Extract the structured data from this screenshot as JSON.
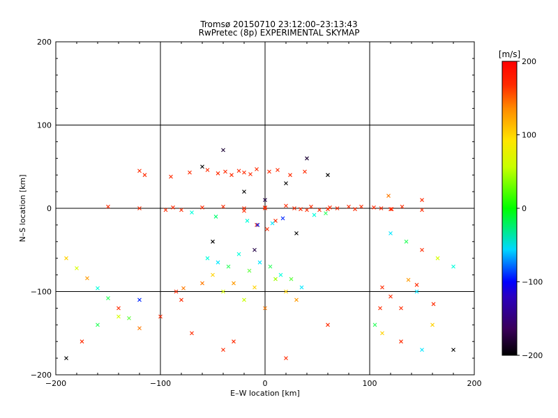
{
  "chart_data": {
    "type": "scatter",
    "title": "Tromsø 20150710 23:12:00–23:13:43",
    "subtitle": "RwPretec (8p) EXPERIMENTAL SKYMAP",
    "xlabel": "E–W location [km]",
    "ylabel": "N–S location [km]",
    "xlim": [
      -200,
      200
    ],
    "ylim": [
      -200,
      200
    ],
    "xticks": [
      -200,
      -100,
      0,
      100,
      200
    ],
    "yticks": [
      -200,
      -100,
      0,
      100,
      200
    ],
    "grid": true,
    "colorbar": {
      "label": "[m/s]",
      "range": [
        -200,
        200
      ],
      "ticks": [
        -200,
        -100,
        0,
        100,
        200
      ],
      "colormap": "black-purple-blue-cyan-green-yellow-orange-red"
    },
    "marker_types": [
      "x",
      "dot"
    ],
    "series": [
      {
        "x": [
          -120,
          -115,
          -90,
          -72,
          -55,
          -45,
          -38,
          -32,
          -25,
          -20,
          -14,
          -8,
          4,
          12,
          24,
          38,
          -8,
          2,
          10,
          -60,
          -50,
          -40,
          -30,
          -20,
          -10,
          0,
          10,
          20,
          30,
          -55,
          -45,
          -35,
          -25,
          -15,
          -5,
          5,
          15,
          25,
          35,
          -100,
          -70,
          -40,
          110,
          -80,
          60,
          -30,
          20,
          -60,
          -40,
          -20,
          0,
          20,
          40,
          60,
          -50,
          -10,
          30,
          -20,
          -40,
          40,
          -60,
          60,
          -20,
          20,
          0,
          -80,
          80,
          0,
          -120,
          120,
          -150,
          150,
          -95,
          -88,
          28,
          34,
          44,
          52,
          62,
          69,
          86,
          92,
          104,
          111,
          121,
          131,
          -70,
          -47,
          -17,
          -7,
          7,
          17,
          47,
          58,
          -85,
          -78,
          112,
          120,
          137,
          145,
          161,
          -190,
          -175,
          -160,
          -140,
          -120,
          130,
          145,
          160,
          180,
          -190,
          -180,
          -170,
          -160,
          -150,
          -140,
          -130,
          -120,
          120,
          135,
          150,
          165,
          180,
          105,
          112,
          130,
          150,
          118,
          150
        ],
        "y": [
          45,
          40,
          38,
          43,
          46,
          42,
          44,
          40,
          45,
          43,
          41,
          47,
          44,
          46,
          40,
          44,
          -20,
          -25,
          -15,
          -90,
          -80,
          -100,
          -90,
          -110,
          -95,
          -120,
          -85,
          -100,
          -110,
          -60,
          -65,
          -70,
          -55,
          -75,
          -65,
          -70,
          -80,
          -85,
          -95,
          -130,
          -150,
          -170,
          -120,
          -110,
          -140,
          -160,
          -180,
          50,
          70,
          20,
          10,
          30,
          60,
          40,
          -40,
          -50,
          -30,
          0,
          2,
          -2,
          1,
          -1,
          -3,
          3,
          0,
          -2,
          2,
          1,
          0,
          -1,
          2,
          -2,
          -2,
          1,
          0,
          -1,
          2,
          -2,
          1,
          0,
          -1,
          2,
          1,
          0,
          -1,
          2,
          -5,
          -10,
          -15,
          -20,
          -18,
          -12,
          -8,
          -6,
          -100,
          -96,
          -95,
          -106,
          -86,
          -92,
          -115,
          -180,
          -160,
          -140,
          -130,
          -110,
          -120,
          -100,
          -140,
          -170,
          -60,
          -72,
          -84,
          -96,
          -108,
          -120,
          -132,
          -144,
          -30,
          -40,
          -50,
          -60,
          -70,
          -140,
          -150,
          -160,
          -170,
          15,
          10
        ],
        "colors": [
          "#ff2a00",
          "#ff2a00",
          "#ff2a00",
          "#ff2a00",
          "#ff2a00",
          "#ff2a00",
          "#ff2a00",
          "#ff2a00",
          "#ff2a00",
          "#ff2a00",
          "#ff2a00",
          "#ff2a00",
          "#ff2a00",
          "#ff2a00",
          "#ff2a00",
          "#ff2a00",
          "#ff2a00",
          "#ff2a00",
          "#ff2a00",
          "#ff7a00",
          "#ffd200",
          "#d8ff00",
          "#ff9a00",
          "#c8ff00",
          "#ffd200",
          "#ff7a00",
          "#a0ff00",
          "#ffd200",
          "#ff9a00",
          "#00ffdc",
          "#00e6ff",
          "#30ff60",
          "#00ffdc",
          "#60ff40",
          "#00e6ff",
          "#30ff60",
          "#00ffdc",
          "#60ff40",
          "#00e6ff",
          "#ff2a00",
          "#ff2a00",
          "#ff2a00",
          "#ff2a00",
          "#ff2a00",
          "#ff2a00",
          "#ff2a00",
          "#ff2a00",
          "#000000",
          "#1a0033",
          "#000000",
          "#220044",
          "#000000",
          "#1a0033",
          "#000000",
          "#000000",
          "#220044",
          "#000000",
          "#ff2a00",
          "#ff2a00",
          "#ff2a00",
          "#ff2a00",
          "#ff2a00",
          "#ff2a00",
          "#ff2a00",
          "#ff2a00",
          "#ff2a00",
          "#ff2a00",
          "#ff2a00",
          "#ff2a00",
          "#ff2a00",
          "#ff2a00",
          "#ff2a00",
          "#ff2a00",
          "#ff2a00",
          "#ff2a00",
          "#ff2a00",
          "#ff2a00",
          "#ff2a00",
          "#ff2a00",
          "#ff2a00",
          "#ff2a00",
          "#ff2a00",
          "#ff2a00",
          "#ff2a00",
          "#ff2a00",
          "#ff2a00",
          "#00ffdc",
          "#00ff70",
          "#00ffdc",
          "#0026ff",
          "#00e6ff",
          "#0026ff",
          "#00ffdc",
          "#30ff60",
          "#ff2a00",
          "#ff7a00",
          "#ff2a00",
          "#ff2a00",
          "#ff9a00",
          "#ff2a00",
          "#ff2a00",
          "#000000",
          "#ff2a00",
          "#30ff60",
          "#d8ff00",
          "#0026ff",
          "#ff2a00",
          "#00e6ff",
          "#ffd200",
          "#000000",
          "#ffd200",
          "#d8ff00",
          "#ff9a00",
          "#00ffdc",
          "#30ff60",
          "#ff2a00",
          "#60ff40",
          "#ff7a00",
          "#00e6ff",
          "#30ff60",
          "#ff2a00",
          "#d8ff00",
          "#00ffdc",
          "#30ff60",
          "#ffd200",
          "#ff2a00",
          "#00e6ff",
          "#ff7a00",
          "#ff2a00"
        ]
      }
    ]
  }
}
